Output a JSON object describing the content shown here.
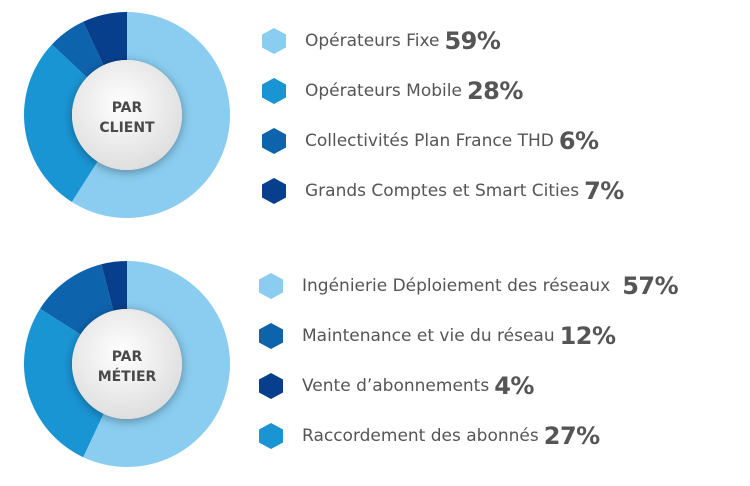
{
  "chart_data": [
    {
      "type": "pie",
      "center_label_lines": [
        "PAR",
        "CLIENT"
      ],
      "categories": [
        "Opérateurs Fixe",
        "Opérateurs Mobile",
        "Collectivités Plan France THD",
        "Grands Comptes et Smart Cities"
      ],
      "values": [
        59,
        28,
        6,
        7
      ],
      "value_labels": [
        "59%",
        "28%",
        "6%",
        "7%"
      ],
      "colors": [
        "#8acdf0",
        "#1a95d4",
        "#0e63ad",
        "#083f8c"
      ]
    },
    {
      "type": "pie",
      "center_label_lines": [
        "PAR",
        "MÉTIER"
      ],
      "categories": [
        "Ingénierie Déploiement des réseaux",
        "Maintenance et vie du réseau",
        "Vente d’abonnements",
        "Raccordement des abonnés"
      ],
      "values": [
        57,
        12,
        4,
        27
      ],
      "value_labels": [
        "57%",
        "12%",
        "4%",
        "27%"
      ],
      "colors": [
        "#8acdf0",
        "#0e63ad",
        "#083f8c",
        "#1a95d4"
      ],
      "ring_order": [
        0,
        3,
        1,
        2
      ]
    }
  ]
}
